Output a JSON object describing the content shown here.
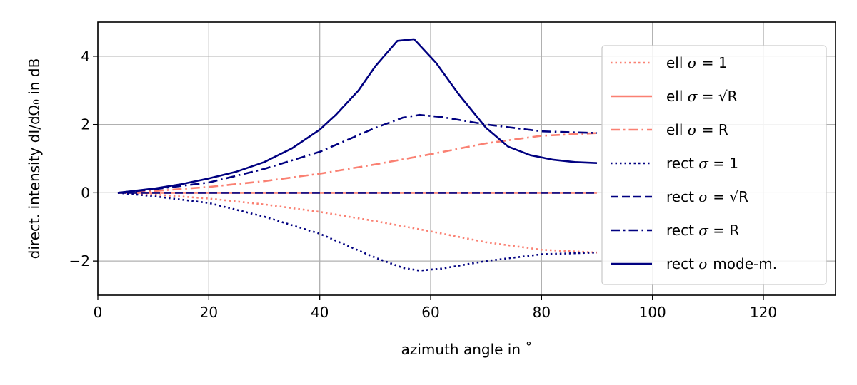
{
  "chart_data": {
    "type": "line",
    "xlabel": "azimuth angle in ˚",
    "ylabel": "direct. intensity dI/dΩ₀ in dB",
    "xlim": [
      0,
      133
    ],
    "ylim": [
      -3,
      5
    ],
    "xticks": [
      0,
      20,
      40,
      60,
      80,
      100,
      120
    ],
    "yticks": [
      -2,
      0,
      2,
      4
    ],
    "xtick_labels": [
      "0",
      "20",
      "40",
      "60",
      "80",
      "100",
      "120"
    ],
    "ytick_labels": [
      "−2",
      "0",
      "2",
      "4"
    ],
    "grid": true,
    "legend_position": "right",
    "series": [
      {
        "name": "ell σ = 1",
        "name_prefix": "ell ",
        "name_symbol": "σ",
        "name_suffix": " = 1",
        "color": "#fa8072",
        "dash": "dotted",
        "x": [
          3.6,
          10,
          20,
          30,
          40,
          50,
          60,
          70,
          80,
          90
        ],
        "y": [
          0,
          -0.05,
          -0.17,
          -0.34,
          -0.56,
          -0.83,
          -1.13,
          -1.45,
          -1.67,
          -1.75
        ]
      },
      {
        "name": "ell σ = √R",
        "name_prefix": "ell ",
        "name_symbol": "σ",
        "name_suffix": " = √R",
        "color": "#fa8072",
        "dash": "solid",
        "x": [
          3.6,
          90
        ],
        "y": [
          0,
          0
        ]
      },
      {
        "name": "ell σ = R",
        "name_prefix": "ell ",
        "name_symbol": "σ",
        "name_suffix": " = R",
        "color": "#fa8072",
        "dash": "dashdot",
        "x": [
          3.6,
          10,
          20,
          30,
          40,
          50,
          60,
          70,
          80,
          90
        ],
        "y": [
          0,
          0.05,
          0.17,
          0.34,
          0.56,
          0.83,
          1.13,
          1.45,
          1.67,
          1.75
        ]
      },
      {
        "name": "rect σ = 1",
        "name_prefix": "rect ",
        "name_symbol": "σ",
        "name_suffix": " = 1",
        "color": "#000080",
        "dash": "dotted",
        "x": [
          3.6,
          10,
          20,
          30,
          40,
          45,
          50,
          55,
          58,
          62,
          70,
          80,
          90
        ],
        "y": [
          0,
          -0.1,
          -0.3,
          -0.7,
          -1.2,
          -1.55,
          -1.9,
          -2.2,
          -2.28,
          -2.22,
          -2.0,
          -1.8,
          -1.75
        ]
      },
      {
        "name": "rect σ = √R",
        "name_prefix": "rect ",
        "name_symbol": "σ",
        "name_suffix": " = √R",
        "color": "#000080",
        "dash": "dashed",
        "x": [
          3.6,
          90
        ],
        "y": [
          0,
          0
        ]
      },
      {
        "name": "rect σ = R",
        "name_prefix": "rect ",
        "name_symbol": "σ",
        "name_suffix": " = R",
        "color": "#000080",
        "dash": "dashdot",
        "x": [
          3.6,
          10,
          20,
          30,
          40,
          45,
          50,
          55,
          58,
          62,
          70,
          80,
          90
        ],
        "y": [
          0,
          0.1,
          0.3,
          0.7,
          1.2,
          1.55,
          1.9,
          2.2,
          2.28,
          2.22,
          2.0,
          1.8,
          1.75
        ]
      },
      {
        "name": "rect σ mode-m.",
        "name_prefix": "rect ",
        "name_symbol": "σ",
        "name_suffix": " mode-m.",
        "color": "#000080",
        "dash": "solid",
        "x": [
          3.6,
          10,
          15,
          20,
          25,
          30,
          35,
          40,
          43,
          47,
          50,
          54,
          57,
          61,
          65,
          70,
          74,
          78,
          82,
          86,
          90
        ],
        "y": [
          0,
          0.12,
          0.25,
          0.42,
          0.62,
          0.9,
          1.3,
          1.85,
          2.3,
          3.0,
          3.7,
          4.45,
          4.5,
          3.8,
          2.9,
          1.9,
          1.35,
          1.1,
          0.97,
          0.9,
          0.87
        ]
      }
    ]
  }
}
